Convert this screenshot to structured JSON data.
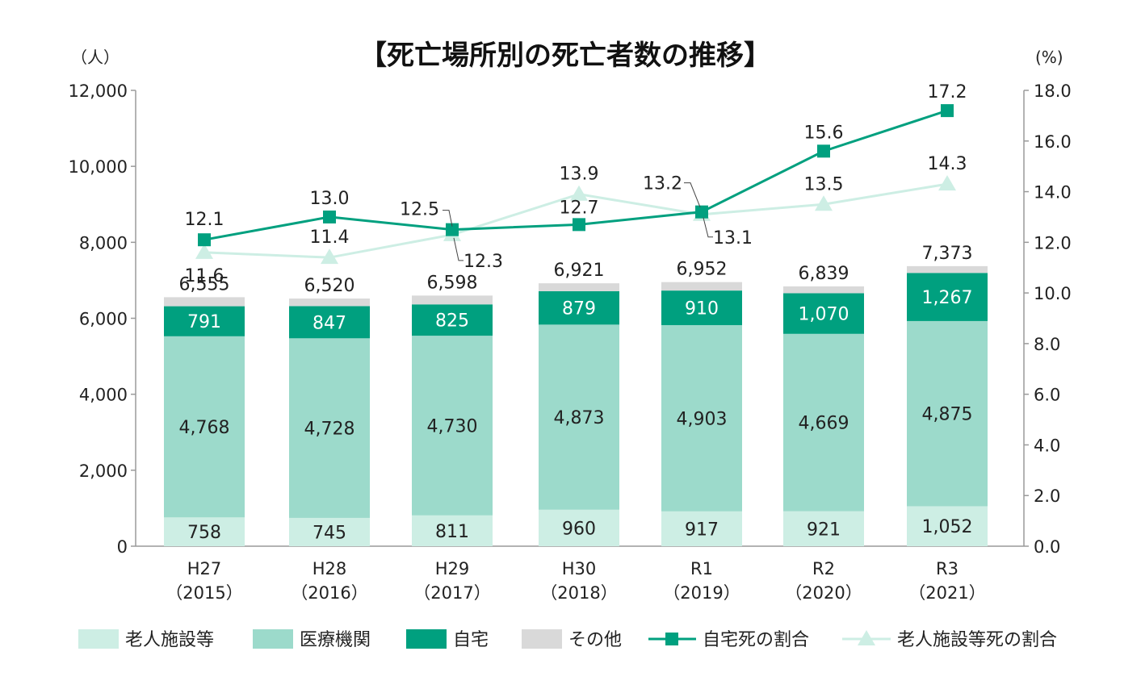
{
  "chart_data": {
    "type": "bar",
    "title": "【死亡場所別の死亡者数の推移】",
    "left_unit": "（人）",
    "right_unit": "(%)",
    "categories": [
      [
        "H27",
        "（2015）"
      ],
      [
        "H28",
        "（2016）"
      ],
      [
        "H29",
        "（2017）"
      ],
      [
        "H30",
        "（2018）"
      ],
      [
        "R1",
        "（2019）"
      ],
      [
        "R2",
        "（2020）"
      ],
      [
        "R3",
        "（2021）"
      ]
    ],
    "ylim": [
      0,
      12000
    ],
    "y_ticks": [
      "0",
      "2,000",
      "4,000",
      "6,000",
      "8,000",
      "10,000",
      "12,000"
    ],
    "y2lim": [
      0,
      18
    ],
    "y2_ticks": [
      "0.0",
      "2.0",
      "4.0",
      "6.0",
      "8.0",
      "10.0",
      "12.0",
      "14.0",
      "16.0",
      "18.0"
    ],
    "series": [
      {
        "name": "老人施設等",
        "values": [
          758,
          745,
          811,
          960,
          917,
          921,
          1052
        ],
        "labels": [
          "758",
          "745",
          "811",
          "960",
          "917",
          "921",
          "1,052"
        ],
        "color": "#cdeee4"
      },
      {
        "name": "医療機関",
        "values": [
          4768,
          4728,
          4730,
          4873,
          4903,
          4669,
          4875
        ],
        "labels": [
          "4,768",
          "4,728",
          "4,730",
          "4,873",
          "4,903",
          "4,669",
          "4,875"
        ],
        "color": "#9cdacb"
      },
      {
        "name": "自宅",
        "values": [
          791,
          847,
          825,
          879,
          910,
          1070,
          1267
        ],
        "labels": [
          "791",
          "847",
          "825",
          "879",
          "910",
          "1,070",
          "1,267"
        ],
        "color": "#00a07f"
      },
      {
        "name": "その他",
        "values": [
          238,
          200,
          232,
          209,
          222,
          179,
          179
        ],
        "color": "#d9d9d9"
      }
    ],
    "totals": [
      "6,555",
      "6,520",
      "6,598",
      "6,921",
      "6,952",
      "6,839",
      "7,373"
    ],
    "lines": [
      {
        "name": "自宅死の割合",
        "values": [
          12.1,
          13.0,
          12.5,
          12.7,
          13.2,
          15.6,
          17.2
        ],
        "labels": [
          "12.1",
          "13.0",
          "12.5",
          "12.7",
          "13.2",
          "15.6",
          "17.2"
        ],
        "color": "#00a07f",
        "marker": "square"
      },
      {
        "name": "老人施設等死の割合",
        "values": [
          11.6,
          11.4,
          12.3,
          13.9,
          13.1,
          13.5,
          14.3
        ],
        "labels": [
          "11.6",
          "11.4",
          "12.3",
          "13.9",
          "13.1",
          "13.5",
          "14.3"
        ],
        "color": "#cdeee4",
        "marker": "triangle"
      }
    ],
    "legend_position": "bottom"
  }
}
